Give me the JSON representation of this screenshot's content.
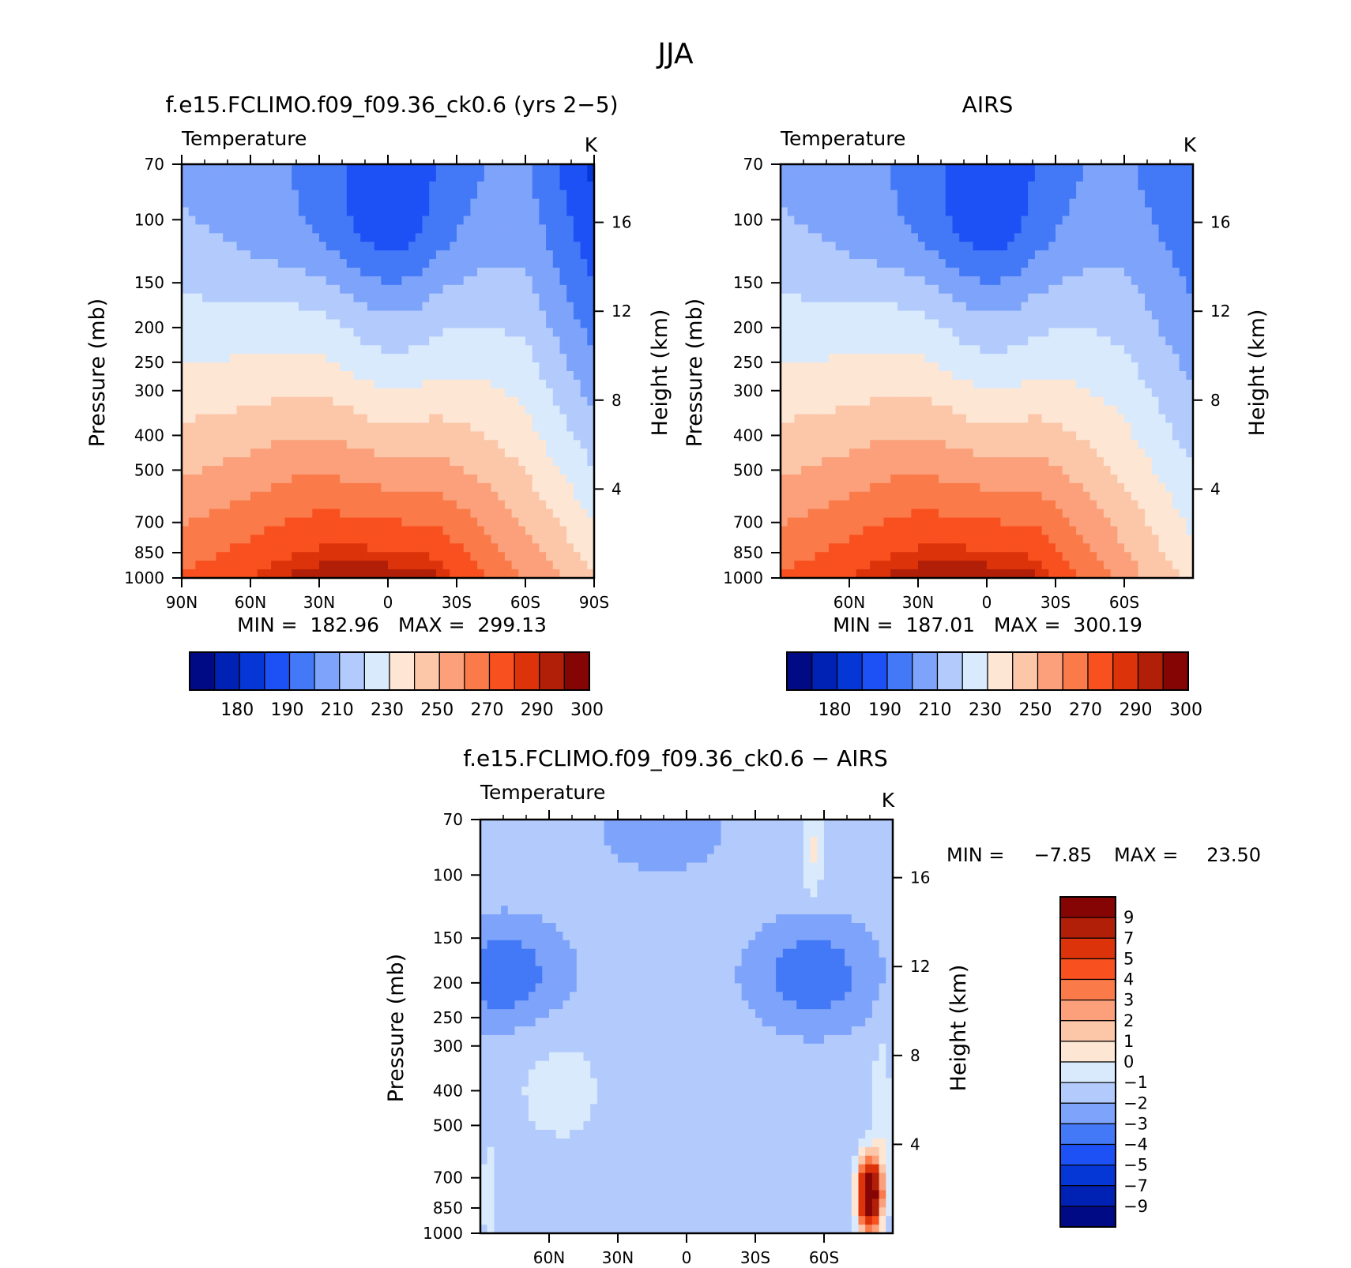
{
  "figure_title": "JJA",
  "chart_data": [
    {
      "type": "heatmap",
      "title": "f.e15.FCLIMO.f09_f09.36_ck0.6 (yrs 2−5)",
      "subtitle_left": "Temperature",
      "units": "K",
      "ylabel": "Pressure (mb)",
      "y2label": "Height (km)",
      "x_ticks": [
        "90N",
        "60N",
        "30N",
        "0",
        "30S",
        "60S",
        "90S"
      ],
      "xlim": [
        90,
        -90
      ],
      "y_ticks": [
        70,
        100,
        150,
        200,
        250,
        300,
        400,
        500,
        700,
        850,
        1000
      ],
      "ylim": [
        1000,
        70
      ],
      "y2_ticks": [
        4,
        8,
        12,
        16
      ],
      "stats_text": "MIN =  182.96   MAX =  299.13",
      "min": 182.96,
      "max": 299.13,
      "levels": [
        180,
        185,
        190,
        200,
        210,
        220,
        230,
        240,
        250,
        260,
        270,
        280,
        290,
        295,
        300
      ],
      "colorbar_labels": [
        "180",
        "190",
        "210",
        "230",
        "250",
        "270",
        "290",
        "300"
      ]
    },
    {
      "type": "heatmap",
      "title": "AIRS",
      "subtitle_left": "Temperature",
      "units": "K",
      "ylabel": "Pressure (mb)",
      "y2label": "Height (km)",
      "x_ticks": [
        "60N",
        "30N",
        "0",
        "30S",
        "60S"
      ],
      "xlim": [
        90,
        -90
      ],
      "y_ticks": [
        70,
        100,
        150,
        200,
        250,
        300,
        400,
        500,
        700,
        850,
        1000
      ],
      "ylim": [
        1000,
        70
      ],
      "y2_ticks": [
        4,
        8,
        12,
        16
      ],
      "stats_text": "MIN =  187.01   MAX =  300.19",
      "min": 187.01,
      "max": 300.19,
      "levels": [
        180,
        185,
        190,
        200,
        210,
        220,
        230,
        240,
        250,
        260,
        270,
        280,
        290,
        295,
        300
      ],
      "colorbar_labels": [
        "180",
        "190",
        "210",
        "230",
        "250",
        "270",
        "290",
        "300"
      ]
    },
    {
      "type": "heatmap",
      "title": "f.e15.FCLIMO.f09_f09.36_ck0.6 − AIRS",
      "subtitle_left": "Temperature",
      "units": "K",
      "ylabel": "Pressure (mb)",
      "y2label": "Height (km)",
      "x_ticks": [
        "60N",
        "30N",
        "0",
        "30S",
        "60S"
      ],
      "xlim": [
        90,
        -90
      ],
      "y_ticks": [
        70,
        100,
        150,
        200,
        250,
        300,
        400,
        500,
        700,
        850,
        1000
      ],
      "ylim": [
        1000,
        70
      ],
      "y2_ticks": [
        4,
        8,
        12,
        16
      ],
      "stats_min_label": "MIN =",
      "stats_min_value": "−7.85",
      "stats_max_label": "MAX =",
      "stats_max_value": "23.50",
      "min": -7.85,
      "max": 23.5,
      "levels": [
        -9,
        -7,
        -5,
        -4,
        -3,
        -2,
        -1,
        0,
        1,
        2,
        3,
        4,
        5,
        7,
        9
      ],
      "colorbar_labels": [
        "9",
        "7",
        "5",
        "4",
        "3",
        "2",
        "1",
        "0",
        "−1",
        "−2",
        "−3",
        "−4",
        "−5",
        "−7",
        "−9"
      ]
    }
  ],
  "palette": [
    "#000a85",
    "#0022b4",
    "#0536d6",
    "#1e51f5",
    "#4379f7",
    "#7ea3fa",
    "#b2cbfc",
    "#d9eafc",
    "#fde6d4",
    "#fcc6a9",
    "#fba07a",
    "#fa7a4a",
    "#f9501f",
    "#dc330a",
    "#b21f08",
    "#850505"
  ]
}
